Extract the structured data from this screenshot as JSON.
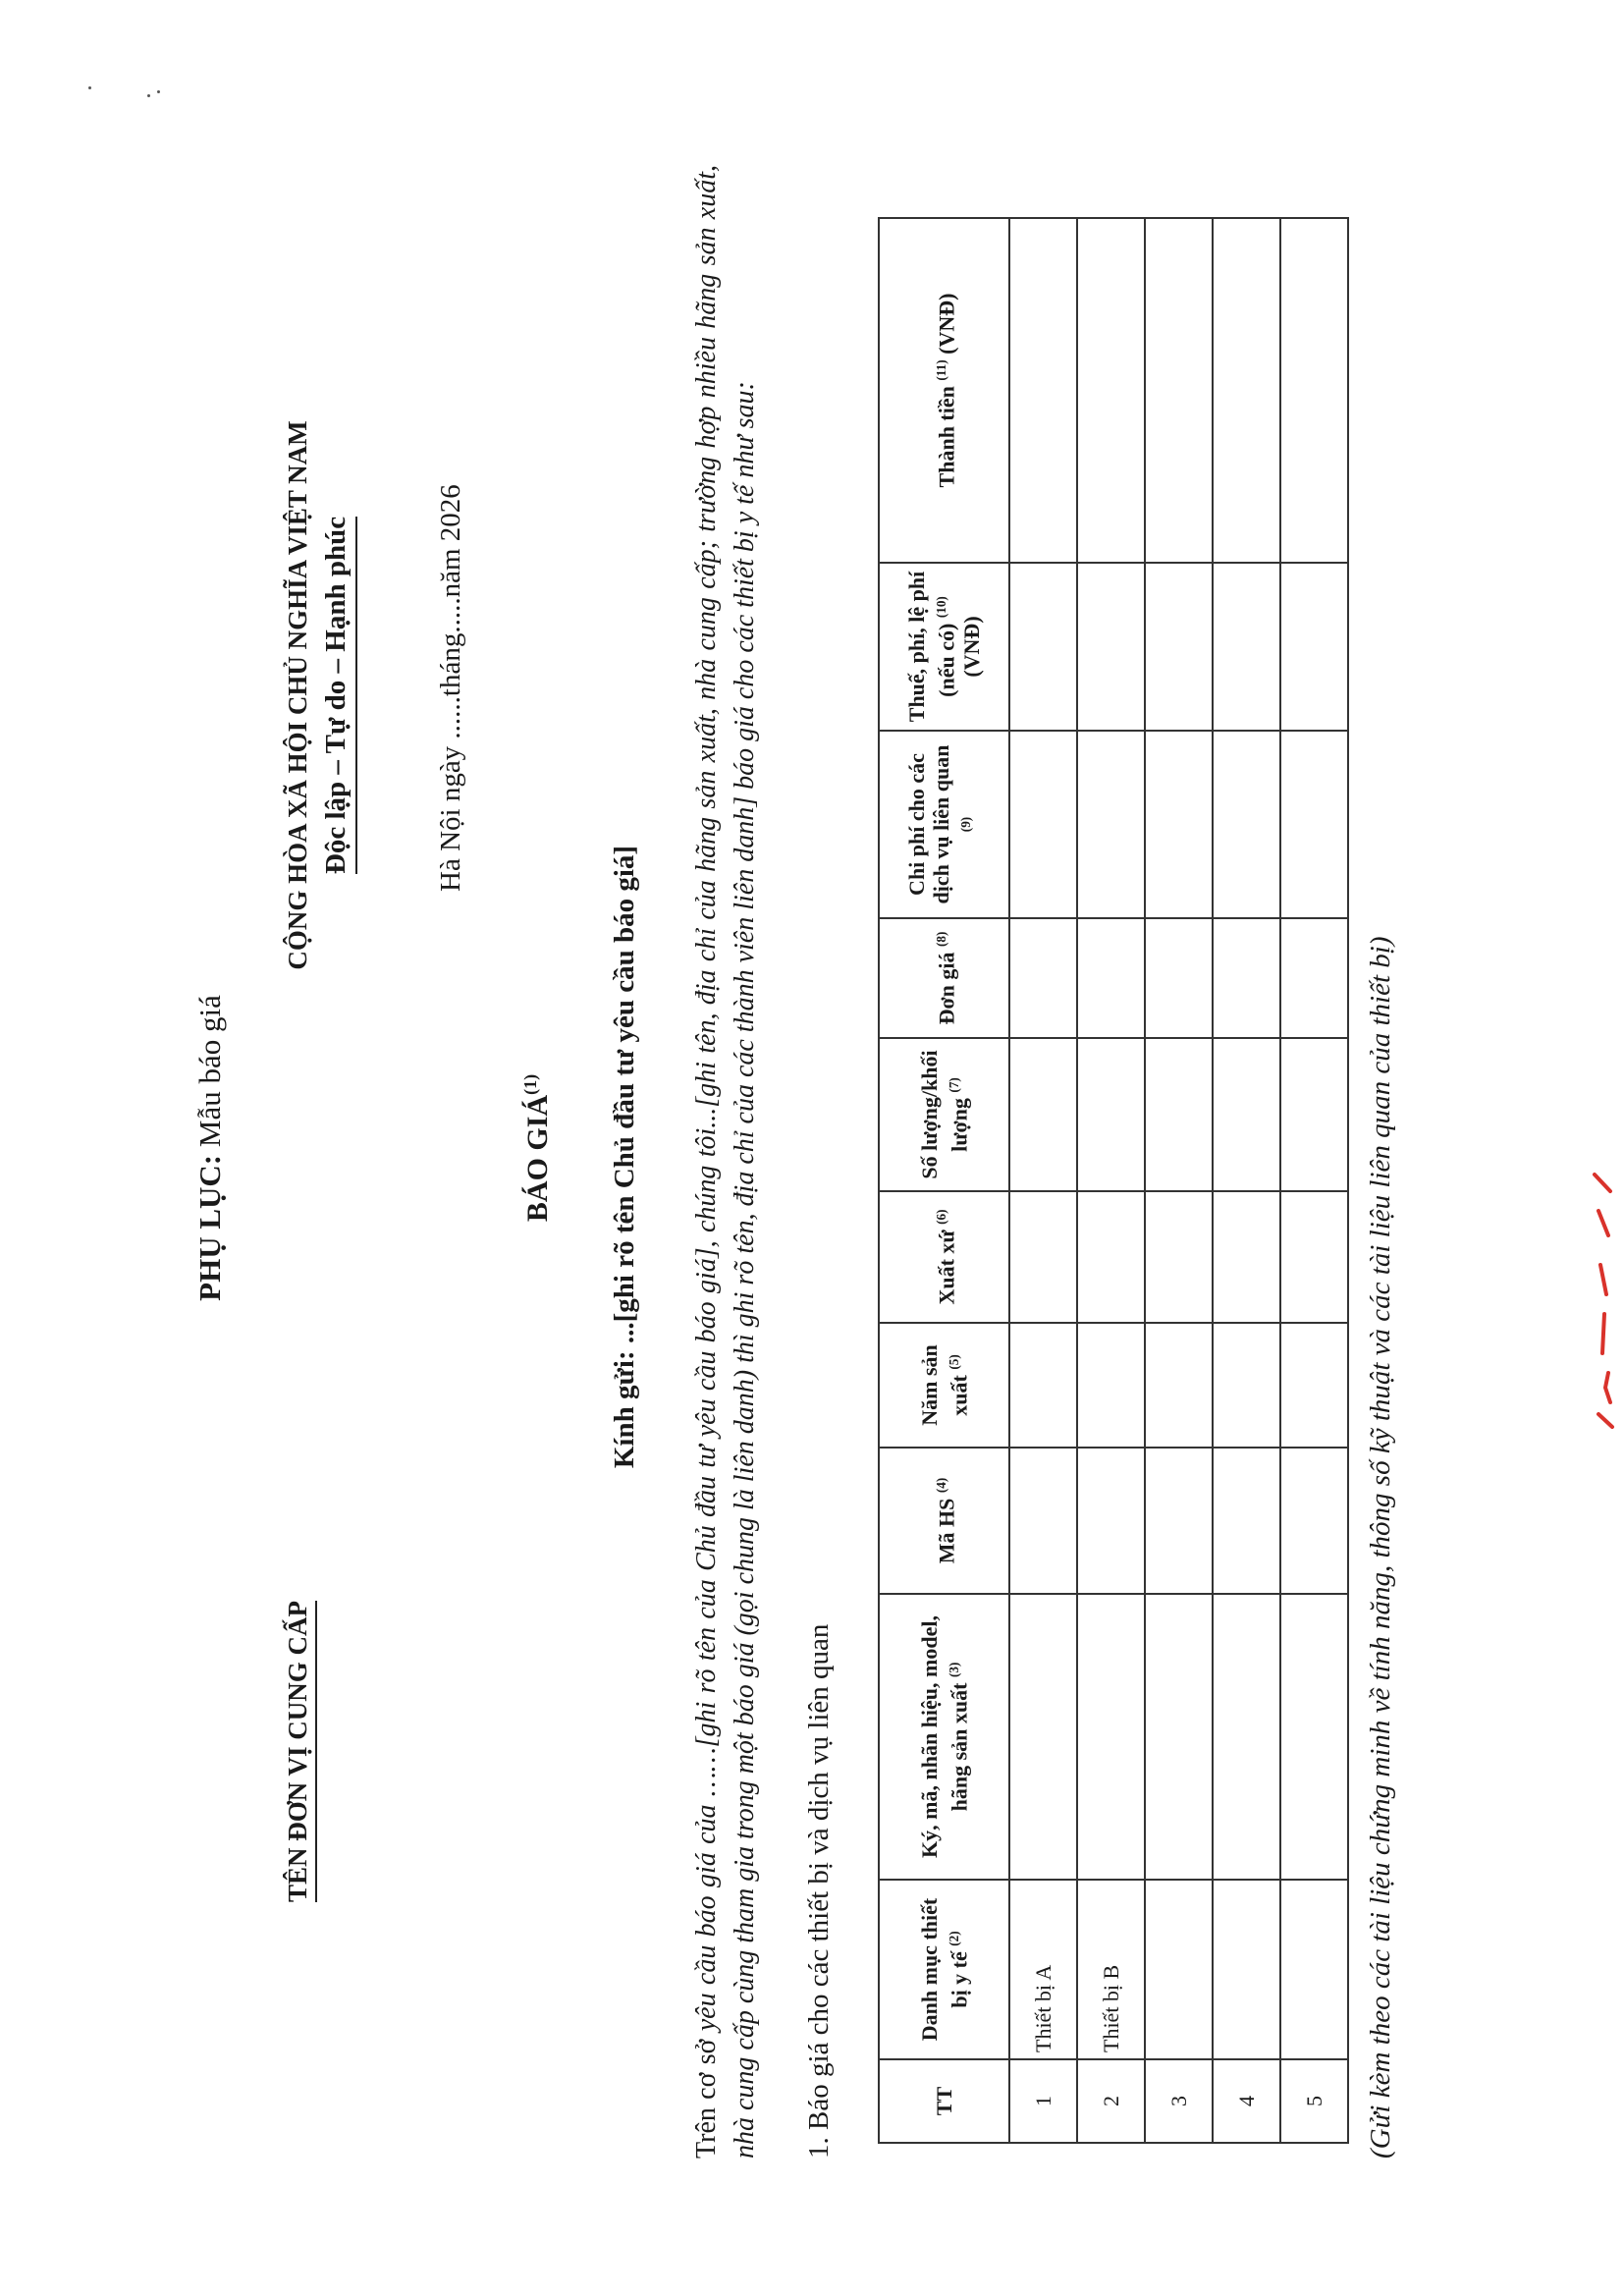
{
  "header": {
    "appendix_label": "PHỤ LỤC:",
    "appendix_title": "Mẫu báo giá",
    "organization": "TÊN ĐƠN VỊ CUNG CẤP",
    "nation": "CỘNG HÒA XÃ HỘI CHỦ NGHĨA VIỆT NAM",
    "motto": "Độc lập – Tự do – Hạnh phúc",
    "place_date": "Hà Nội ngày ......tháng.....năm 2026"
  },
  "document": {
    "title": "BÁO GIÁ",
    "title_note": "(1)",
    "recipient": "Kính gửi: ...[ghi rõ tên Chủ đầu tư yêu cầu báo giá]",
    "intro_1": "Trên cơ sở ",
    "intro_2": "yêu cầu báo giá của ……[ghi rõ tên của Chủ đầu tư yêu cầu báo giá], chúng tôi...[ghi tên, địa chỉ của hãng sản xuất, nhà cung cấp; trường hợp nhiều hãng sản xuất, nhà cung cấp cùng tham gia trong một báo giá (gọi chung là liên danh) thì ghi rõ tên, địa chỉ của các thành viên liên danh] báo giá cho các thiết bị y tế như sau:",
    "section_1": "1. Báo giá cho các thiết bị và dịch vụ liên quan",
    "footnote": "(Gửi kèm theo các tài liệu chứng minh về tính năng, thông số kỹ thuật và các tài liệu liên quan của thiết bị)"
  },
  "table": {
    "headers": [
      {
        "label": "TT",
        "note": ""
      },
      {
        "label": "Danh mục thiết bị y tế",
        "note": "(2)"
      },
      {
        "label": "Ký, mã, nhãn hiệu, model, hãng sản xuất",
        "note": "(3)"
      },
      {
        "label": "Mã HS",
        "note": "(4)"
      },
      {
        "label": "Năm sản xuất",
        "note": "(5)"
      },
      {
        "label": "Xuất xứ",
        "note": "(6)"
      },
      {
        "label": "Số lượng/khối lượng",
        "note": "(7)"
      },
      {
        "label": "Đơn giá",
        "note": "(8)"
      },
      {
        "label": "Chi phí cho các dịch vụ liên quan",
        "note": "(9)"
      },
      {
        "label": "Thuế, phí, lệ phí (nếu có)",
        "note": "(10)",
        "suffix": "(VNĐ)"
      },
      {
        "label": "Thành tiền",
        "note": "(11)",
        "suffix": "(VNĐ)"
      }
    ],
    "rows": [
      {
        "tt": "1",
        "name": "Thiết bị A"
      },
      {
        "tt": "2",
        "name": "Thiết bị B"
      },
      {
        "tt": "3",
        "name": ""
      },
      {
        "tt": "4",
        "name": ""
      },
      {
        "tt": "5",
        "name": ""
      }
    ]
  },
  "colors": {
    "ink": "#1a1a1a",
    "stamp": "#d9322b"
  }
}
